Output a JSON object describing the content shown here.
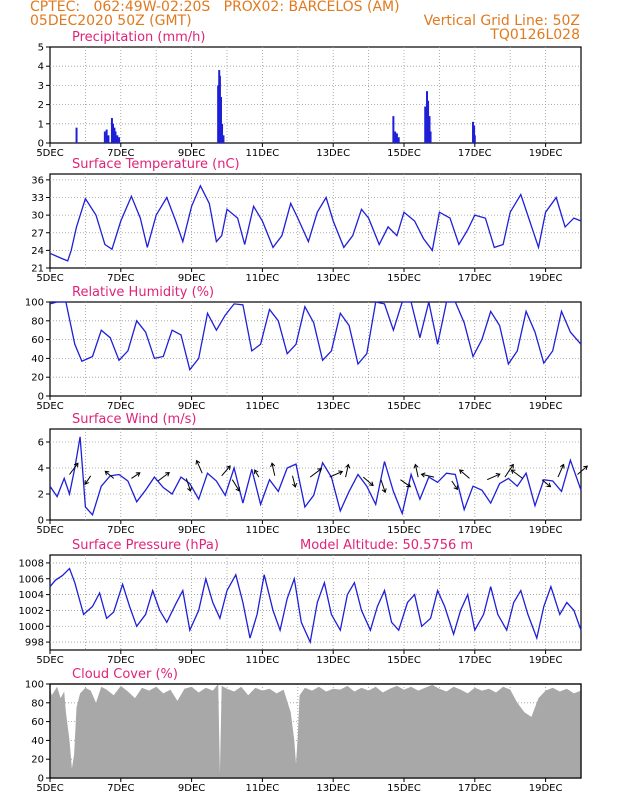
{
  "header": {
    "line1": "CPTEC:   062:49W-02:20S   PROX02: BARCELOS (AM)",
    "line2_left": "05DEC2020 50Z (GMT)",
    "line2_right": "Vertical Grid Line: 50Z",
    "line3_right": "TQ0126L028"
  },
  "colors": {
    "header": "#e07a1f",
    "panel_title": "#e0237a",
    "series": "#1f1fd8",
    "cloud": "#a8a8a8",
    "wind_arrow": "#000000"
  },
  "chart_data": [
    {
      "id": "precip",
      "type": "bar",
      "title": "Precipitation (mm/h)",
      "ylim": [
        0,
        5
      ],
      "yticks": [
        "0",
        "1",
        "2",
        "3",
        "4",
        "5"
      ],
      "xticks": [
        "5DEC",
        "7DEC",
        "9DEC",
        "11DEC",
        "13DEC",
        "15DEC",
        "17DEC",
        "19DEC"
      ],
      "x_days": [
        5.0,
        20.0
      ],
      "series": [
        {
          "x": [
            5.75,
            6.55,
            6.6,
            6.65,
            6.75,
            6.78,
            6.82,
            6.85,
            6.9,
            6.95,
            9.75,
            9.78,
            9.8,
            9.83,
            9.86,
            9.9,
            14.7,
            14.75,
            14.8,
            14.85,
            15.6,
            15.65,
            15.68,
            15.72,
            15.75,
            16.95,
            16.98,
            17.0
          ],
          "values": [
            0.8,
            0.6,
            0.7,
            0.4,
            1.3,
            1.0,
            0.8,
            0.6,
            0.4,
            0.3,
            3.0,
            3.8,
            3.5,
            2.4,
            1.0,
            0.4,
            1.4,
            0.6,
            0.5,
            0.3,
            1.9,
            2.7,
            2.2,
            1.4,
            0.6,
            1.1,
            0.9,
            0.4
          ]
        }
      ]
    },
    {
      "id": "temp",
      "type": "line",
      "title": "Surface Temperature (nC)",
      "ylim": [
        21,
        37
      ],
      "yticks": [
        "21",
        "24",
        "27",
        "30",
        "33",
        "36"
      ],
      "xticks": [
        "5DEC",
        "7DEC",
        "9DEC",
        "11DEC",
        "13DEC",
        "15DEC",
        "17DEC",
        "19DEC"
      ],
      "series": [
        {
          "x": [
            5.0,
            5.3,
            5.5,
            5.6,
            5.75,
            6.0,
            6.3,
            6.55,
            6.75,
            7.0,
            7.3,
            7.55,
            7.75,
            8.0,
            8.3,
            8.55,
            8.75,
            9.0,
            9.25,
            9.5,
            9.7,
            9.85,
            10.0,
            10.3,
            10.5,
            10.75,
            11.0,
            11.3,
            11.55,
            11.8,
            12.0,
            12.3,
            12.55,
            12.8,
            13.0,
            13.3,
            13.55,
            13.8,
            14.0,
            14.3,
            14.55,
            14.8,
            15.0,
            15.3,
            15.55,
            15.8,
            16.0,
            16.3,
            16.55,
            16.8,
            17.0,
            17.3,
            17.55,
            17.8,
            18.0,
            18.3,
            18.55,
            18.8,
            19.0,
            19.3,
            19.55,
            19.8,
            20.0
          ],
          "values": [
            23.5,
            22.7,
            22.2,
            24.0,
            28.0,
            32.8,
            30.0,
            25.0,
            24.2,
            29.0,
            33.2,
            29.5,
            24.5,
            30.0,
            33.0,
            29.0,
            25.5,
            31.5,
            35.0,
            32.0,
            25.5,
            26.5,
            31.0,
            29.5,
            25.0,
            31.5,
            29.0,
            24.5,
            26.5,
            32.0,
            29.5,
            25.5,
            30.5,
            33.0,
            29.0,
            24.5,
            26.5,
            31.0,
            29.5,
            25.0,
            28.0,
            26.5,
            30.5,
            29.0,
            26.0,
            24.0,
            30.5,
            29.5,
            25.0,
            27.5,
            30.0,
            29.5,
            24.5,
            25.0,
            30.5,
            33.5,
            29.0,
            24.5,
            30.5,
            33.0,
            28.0,
            29.5,
            29.0
          ]
        }
      ]
    },
    {
      "id": "rh",
      "type": "line",
      "title": "Relative Humidity (%)",
      "ylim": [
        0,
        100
      ],
      "yticks": [
        "0",
        "20",
        "40",
        "60",
        "80",
        "100"
      ],
      "xticks": [
        "5DEC",
        "7DEC",
        "9DEC",
        "11DEC",
        "13DEC",
        "15DEC",
        "17DEC",
        "19DEC"
      ],
      "series": [
        {
          "x": [
            5.0,
            5.2,
            5.45,
            5.7,
            5.9,
            6.2,
            6.45,
            6.7,
            6.95,
            7.2,
            7.45,
            7.7,
            7.95,
            8.2,
            8.45,
            8.7,
            8.95,
            9.2,
            9.45,
            9.7,
            9.95,
            10.2,
            10.45,
            10.7,
            10.95,
            11.2,
            11.45,
            11.7,
            11.95,
            12.2,
            12.45,
            12.7,
            12.95,
            13.2,
            13.45,
            13.7,
            13.95,
            14.2,
            14.45,
            14.7,
            14.95,
            15.2,
            15.45,
            15.7,
            15.95,
            16.2,
            16.45,
            16.7,
            16.95,
            17.2,
            17.45,
            17.7,
            17.95,
            18.2,
            18.45,
            18.7,
            18.95,
            19.2,
            19.45,
            19.7,
            20.0
          ],
          "values": [
            98,
            100,
            100,
            55,
            37,
            42,
            70,
            62,
            38,
            48,
            80,
            68,
            40,
            42,
            70,
            65,
            28,
            40,
            88,
            70,
            86,
            98,
            97,
            48,
            55,
            92,
            80,
            45,
            55,
            95,
            78,
            38,
            48,
            88,
            75,
            34,
            45,
            100,
            98,
            70,
            100,
            100,
            62,
            100,
            55,
            100,
            100,
            78,
            42,
            60,
            90,
            75,
            34,
            48,
            90,
            68,
            35,
            48,
            90,
            68,
            55
          ]
        }
      ]
    },
    {
      "id": "wind",
      "type": "line",
      "title": "Surface Wind (m/s)",
      "ylim": [
        0,
        7
      ],
      "yticks": [
        "0",
        "2",
        "4",
        "6"
      ],
      "xticks": [
        "5DEC",
        "7DEC",
        "9DEC",
        "11DEC",
        "13DEC",
        "15DEC",
        "17DEC",
        "19DEC"
      ],
      "series": [
        {
          "x": [
            5.0,
            5.2,
            5.4,
            5.55,
            5.7,
            5.85,
            6.0,
            6.2,
            6.45,
            6.7,
            6.95,
            7.2,
            7.45,
            7.7,
            7.95,
            8.2,
            8.45,
            8.7,
            8.95,
            9.2,
            9.45,
            9.7,
            9.95,
            10.2,
            10.45,
            10.7,
            10.95,
            11.2,
            11.45,
            11.7,
            11.95,
            12.2,
            12.45,
            12.7,
            12.95,
            13.2,
            13.45,
            13.7,
            13.95,
            14.2,
            14.45,
            14.7,
            14.95,
            15.2,
            15.45,
            15.7,
            15.95,
            16.2,
            16.45,
            16.7,
            16.95,
            17.2,
            17.45,
            17.7,
            17.95,
            18.2,
            18.45,
            18.7,
            18.95,
            19.2,
            19.45,
            19.7,
            20.0
          ],
          "values": [
            2.6,
            1.8,
            3.2,
            2.0,
            4.0,
            6.4,
            1.0,
            0.4,
            2.6,
            3.4,
            3.5,
            3.0,
            1.4,
            2.3,
            3.3,
            2.5,
            2.0,
            3.3,
            2.8,
            1.6,
            3.6,
            3.0,
            1.9,
            4.0,
            1.3,
            3.9,
            1.2,
            3.1,
            2.2,
            4.0,
            4.3,
            1.0,
            1.9,
            4.4,
            3.3,
            0.7,
            2.2,
            3.5,
            2.6,
            1.2,
            4.5,
            2.2,
            0.5,
            3.5,
            1.6,
            3.3,
            2.9,
            3.6,
            3.5,
            0.8,
            2.6,
            2.3,
            1.3,
            2.8,
            3.2,
            2.6,
            3.6,
            1.1,
            3.1,
            3.0,
            2.2,
            4.6,
            2.3
          ]
        }
      ],
      "vectors": {
        "x": [
          5.55,
          6.15,
          6.8,
          7.3,
          8.05,
          8.85,
          9.3,
          9.85,
          10.15,
          10.9,
          11.35,
          11.85,
          12.35,
          12.9,
          13.35,
          13.85,
          14.35,
          14.9,
          15.4,
          15.85,
          16.35,
          16.85,
          17.35,
          17.85,
          18.35,
          18.9,
          19.35,
          19.9
        ],
        "u": [
          0.6,
          -0.4,
          -0.6,
          0.6,
          0.8,
          0.3,
          -0.4,
          0.6,
          0.5,
          -0.3,
          -0.2,
          0.2,
          0.8,
          0.9,
          0.2,
          0.7,
          0.3,
          0.7,
          -0.2,
          -0.9,
          0.4,
          -0.7,
          0.9,
          0.6,
          -0.8,
          0.6,
          0.4,
          0.7
        ],
        "v": [
          0.8,
          -0.6,
          0.5,
          0.4,
          0.6,
          -0.9,
          0.9,
          0.7,
          -0.8,
          0.5,
          0.9,
          -0.8,
          0.6,
          0.4,
          0.9,
          -0.6,
          -0.9,
          -0.5,
          0.9,
          0.2,
          -0.6,
          0.6,
          0.4,
          0.9,
          0.6,
          -0.5,
          0.9,
          0.6
        ],
        "level": [
          3.5,
          3.4,
          3.2,
          3.2,
          3.0,
          3.2,
          3.6,
          3.4,
          3.1,
          3.3,
          3.4,
          3.4,
          3.3,
          3.3,
          3.3,
          3.3,
          3.1,
          3.1,
          3.3,
          3.3,
          3.0,
          3.2,
          3.1,
          3.3,
          3.2,
          3.1,
          3.3,
          3.5
        ]
      }
    },
    {
      "id": "pres",
      "type": "line",
      "title": "Surface Pressure (hPa)",
      "annotation": "Model Altitude: 50.5756 m",
      "ylim": [
        997,
        1009
      ],
      "yticks": [
        "998",
        "1000",
        "1002",
        "1004",
        "1006",
        "1008"
      ],
      "xticks": [
        "5DEC",
        "7DEC",
        "9DEC",
        "11DEC",
        "13DEC",
        "15DEC",
        "17DEC",
        "19DEC"
      ],
      "series": [
        {
          "x": [
            5.0,
            5.15,
            5.35,
            5.55,
            5.7,
            5.95,
            6.2,
            6.4,
            6.6,
            6.8,
            7.05,
            7.25,
            7.45,
            7.7,
            7.9,
            8.1,
            8.3,
            8.55,
            8.75,
            8.95,
            9.2,
            9.4,
            9.6,
            9.8,
            10.0,
            10.25,
            10.45,
            10.65,
            10.85,
            11.05,
            11.3,
            11.5,
            11.7,
            11.9,
            12.1,
            12.35,
            12.55,
            12.75,
            12.95,
            13.2,
            13.4,
            13.6,
            13.8,
            14.05,
            14.25,
            14.45,
            14.65,
            14.85,
            15.1,
            15.3,
            15.5,
            15.75,
            15.95,
            16.15,
            16.4,
            16.6,
            16.8,
            17.0,
            17.25,
            17.45,
            17.65,
            17.9,
            18.1,
            18.3,
            18.5,
            18.75,
            18.95,
            19.15,
            19.4,
            19.6,
            19.8,
            20.0
          ],
          "values": [
            1005.0,
            1005.8,
            1006.4,
            1007.3,
            1005.5,
            1001.5,
            1002.5,
            1004.2,
            1001.0,
            1001.8,
            1005.3,
            1002.5,
            1000.0,
            1001.5,
            1004.5,
            1002.0,
            1000.5,
            1002.8,
            1004.5,
            999.5,
            1002.0,
            1006.0,
            1003.0,
            1001.0,
            1004.5,
            1006.5,
            1003.0,
            998.5,
            1001.5,
            1006.5,
            1002.0,
            999.5,
            1003.5,
            1006.0,
            1000.5,
            998.0,
            1003.0,
            1005.5,
            1001.5,
            999.5,
            1004.0,
            1005.5,
            1002.0,
            999.5,
            1002.5,
            1004.5,
            1000.5,
            999.5,
            1003.0,
            1004.0,
            1000.0,
            1001.0,
            1004.5,
            1002.5,
            999.0,
            1002.0,
            1004.0,
            999.5,
            1001.5,
            1005.0,
            1001.5,
            999.5,
            1003.0,
            1004.5,
            1001.5,
            998.5,
            1002.5,
            1005.0,
            1001.5,
            1003.0,
            1002.0,
            999.5
          ]
        }
      ]
    },
    {
      "id": "cloud",
      "type": "area",
      "title": "Cloud Cover (%)",
      "ylim": [
        0,
        100
      ],
      "yticks": [
        "0",
        "20",
        "40",
        "60",
        "80",
        "100"
      ],
      "xticks": [
        "5DEC",
        "7DEC",
        "9DEC",
        "11DEC",
        "13DEC",
        "15DEC",
        "17DEC",
        "19DEC"
      ],
      "series": [
        {
          "x": [
            5.0,
            5.05,
            5.2,
            5.3,
            5.4,
            5.45,
            5.5,
            5.55,
            5.62,
            5.68,
            5.75,
            5.85,
            6.0,
            6.15,
            6.3,
            6.45,
            6.6,
            6.8,
            7.0,
            7.2,
            7.4,
            7.6,
            7.8,
            8.0,
            8.2,
            8.4,
            8.6,
            8.8,
            9.0,
            9.2,
            9.4,
            9.6,
            9.75,
            9.8,
            9.85,
            10.0,
            10.2,
            10.4,
            10.6,
            10.8,
            11.0,
            11.2,
            11.4,
            11.6,
            11.8,
            11.9,
            11.95,
            12.0,
            12.05,
            12.2,
            12.4,
            12.6,
            12.8,
            13.0,
            13.2,
            13.4,
            13.6,
            13.8,
            14.0,
            14.2,
            14.4,
            14.6,
            14.8,
            15.0,
            15.2,
            15.4,
            15.6,
            15.8,
            16.0,
            16.2,
            16.4,
            16.6,
            16.8,
            17.0,
            17.2,
            17.4,
            17.6,
            17.8,
            18.0,
            18.2,
            18.4,
            18.6,
            18.8,
            19.0,
            19.2,
            19.4,
            19.6,
            19.8,
            20.0
          ],
          "values": [
            95,
            88,
            97,
            85,
            92,
            70,
            55,
            40,
            10,
            25,
            75,
            90,
            96,
            93,
            80,
            97,
            94,
            88,
            98,
            92,
            85,
            96,
            93,
            97,
            90,
            94,
            82,
            95,
            97,
            91,
            96,
            93,
            100,
            5,
            98,
            95,
            92,
            97,
            88,
            96,
            93,
            95,
            90,
            94,
            70,
            40,
            15,
            45,
            88,
            96,
            93,
            97,
            92,
            95,
            94,
            98,
            92,
            96,
            93,
            97,
            91,
            95,
            98,
            94,
            97,
            93,
            96,
            99,
            95,
            92,
            97,
            94,
            90,
            96,
            93,
            95,
            91,
            97,
            94,
            80,
            70,
            65,
            85,
            93,
            96,
            92,
            95,
            90,
            93
          ]
        }
      ]
    }
  ]
}
